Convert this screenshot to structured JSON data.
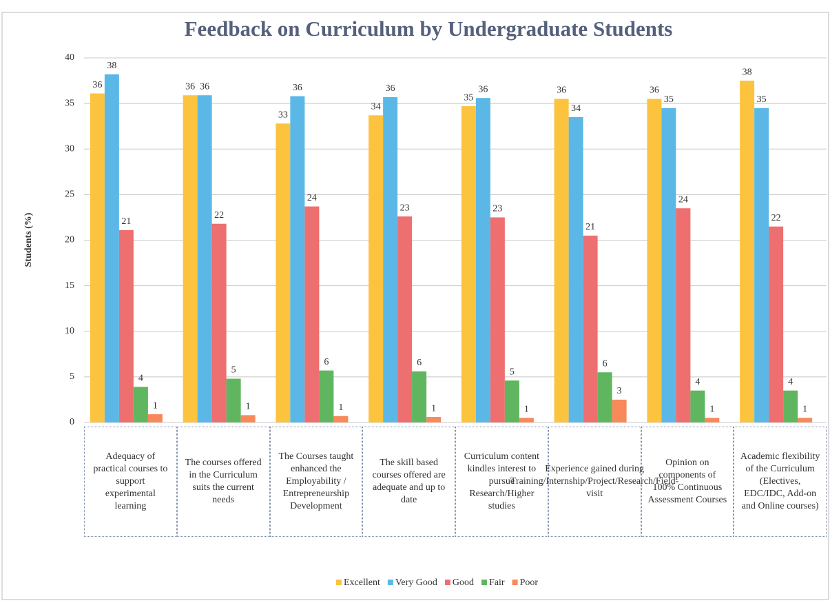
{
  "chart_data": {
    "type": "bar",
    "title": "Feedback on Curriculum by Undergraduate Students",
    "y_label": "Students (%)",
    "categories": [
      "Adequacy of practical courses to support experimental learning",
      "The courses offered in the Curriculum suits the current needs",
      "The Courses taught enhanced the Employability / Entrepreneurship Development",
      "The skill based courses offered are adequate and up to date",
      "Curriculum content kindles interest to pursue Research/Higher studies",
      "Experience gained during Training/Internship/Project/Research/Field-visit",
      "Opinion on components of 100% Continuous Assessment Courses",
      "Academic flexibility of the Curriculum (Electives, EDC/IDC, Add-on and Online courses)"
    ],
    "series": [
      {
        "name": "Excellent",
        "color": "#fcc33f",
        "values": [
          36.1,
          35.9,
          32.8,
          33.7,
          34.7,
          35.5,
          35.5,
          37.5
        ],
        "value_labels": [
          "36",
          "36",
          "33",
          "34",
          "35",
          "36",
          "36",
          "38"
        ]
      },
      {
        "name": "Very Good",
        "color": "#5bb8e6",
        "values": [
          38.2,
          35.9,
          35.8,
          35.7,
          35.6,
          33.5,
          34.5,
          34.5
        ],
        "value_labels": [
          "38",
          "36",
          "36",
          "36",
          "36",
          "34",
          "35",
          "35"
        ]
      },
      {
        "name": "Good",
        "color": "#ee6f6f",
        "values": [
          21.1,
          21.8,
          23.7,
          22.6,
          22.5,
          20.5,
          23.5,
          21.5
        ],
        "value_labels": [
          "21",
          "22",
          "24",
          "23",
          "23",
          "21",
          "24",
          "22"
        ]
      },
      {
        "name": "Fair",
        "color": "#5fb65f",
        "values": [
          3.9,
          4.8,
          5.7,
          5.6,
          4.6,
          5.5,
          3.5,
          3.5
        ],
        "value_labels": [
          "4",
          "5",
          "6",
          "6",
          "5",
          "6",
          "4",
          "4"
        ]
      },
      {
        "name": "Poor",
        "color": "#f7895a",
        "values": [
          0.9,
          0.8,
          0.7,
          0.6,
          0.5,
          2.5,
          0.5,
          0.5
        ],
        "value_labels": [
          "1",
          "1",
          "1",
          "1",
          "1",
          "3",
          "1",
          "1"
        ]
      }
    ],
    "ylim": [
      0,
      40
    ],
    "yticks": [
      0,
      5,
      10,
      15,
      20,
      25,
      30,
      35,
      40
    ],
    "grid": true,
    "legend": "bottom"
  }
}
